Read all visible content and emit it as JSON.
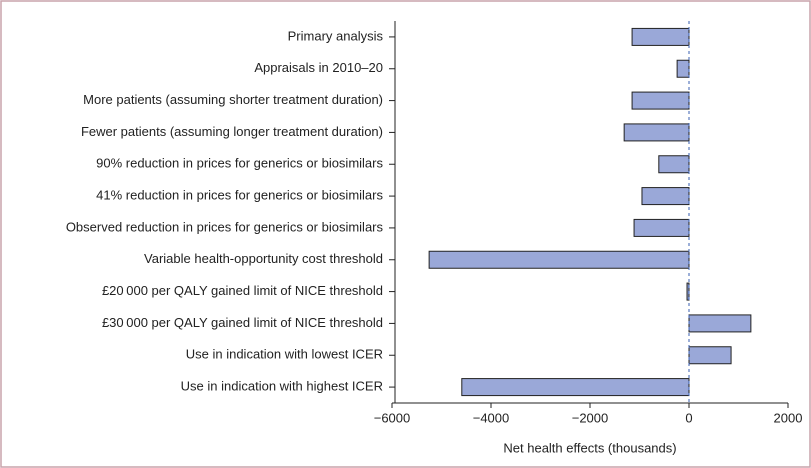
{
  "chart_data": {
    "type": "barh",
    "xlabel": "Net health effects (thousands)",
    "categories": [
      "Primary analysis",
      "Appraisals in 2010–20",
      "More patients (assuming shorter treatment duration)",
      "Fewer patients (assuming longer treatment duration)",
      "90% reduction in prices for generics or biosimilars",
      "41% reduction in prices for generics or biosimilars",
      "Observed reduction in prices for generics or biosimilars",
      "Variable health-opportunity cost threshold",
      "£20 000 per QALY gained limit of NICE threshold",
      "£30 000 per QALY gained limit of NICE threshold",
      "Use in indication with lowest ICER",
      "Use in indication with highest ICER"
    ],
    "values": [
      -1150,
      -240,
      -1150,
      -1310,
      -610,
      -950,
      -1110,
      -5250,
      -40,
      1250,
      850,
      -4590
    ],
    "color": "#9aa8d8",
    "xlim": [
      -6000,
      2000
    ],
    "xticks": [
      {
        "value": -6000,
        "label": "−6000"
      },
      {
        "value": -4000,
        "label": "−4000"
      },
      {
        "value": -2000,
        "label": "−2000"
      },
      0,
      2000
    ]
  }
}
